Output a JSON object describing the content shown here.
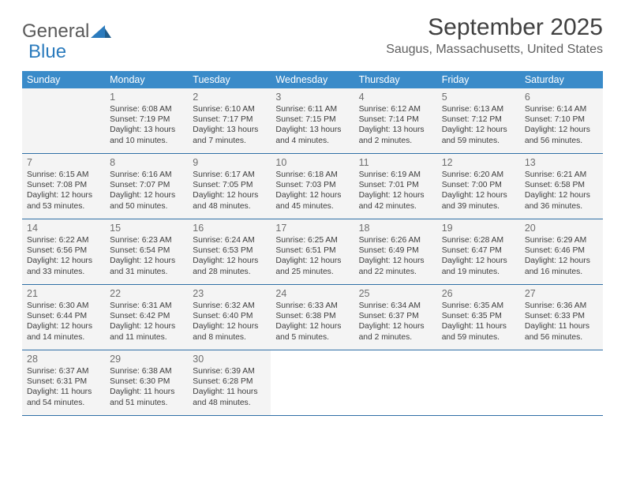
{
  "logo": {
    "word1": "General",
    "word2": "Blue"
  },
  "title": "September 2025",
  "location": "Saugus, Massachusetts, United States",
  "colors": {
    "header_bg": "#3a8bc9",
    "header_text": "#ffffff",
    "cell_bg": "#f4f4f4",
    "border": "#2f6fa6",
    "title_color": "#404040",
    "location_color": "#606060",
    "logo_gray": "#5a5a5a",
    "logo_blue": "#2b7bbd"
  },
  "day_names": [
    "Sunday",
    "Monday",
    "Tuesday",
    "Wednesday",
    "Thursday",
    "Friday",
    "Saturday"
  ],
  "weeks": [
    [
      {
        "blank": true
      },
      {
        "n": "1",
        "sr": "Sunrise: 6:08 AM",
        "ss": "Sunset: 7:19 PM",
        "d1": "Daylight: 13 hours",
        "d2": "and 10 minutes."
      },
      {
        "n": "2",
        "sr": "Sunrise: 6:10 AM",
        "ss": "Sunset: 7:17 PM",
        "d1": "Daylight: 13 hours",
        "d2": "and 7 minutes."
      },
      {
        "n": "3",
        "sr": "Sunrise: 6:11 AM",
        "ss": "Sunset: 7:15 PM",
        "d1": "Daylight: 13 hours",
        "d2": "and 4 minutes."
      },
      {
        "n": "4",
        "sr": "Sunrise: 6:12 AM",
        "ss": "Sunset: 7:14 PM",
        "d1": "Daylight: 13 hours",
        "d2": "and 2 minutes."
      },
      {
        "n": "5",
        "sr": "Sunrise: 6:13 AM",
        "ss": "Sunset: 7:12 PM",
        "d1": "Daylight: 12 hours",
        "d2": "and 59 minutes."
      },
      {
        "n": "6",
        "sr": "Sunrise: 6:14 AM",
        "ss": "Sunset: 7:10 PM",
        "d1": "Daylight: 12 hours",
        "d2": "and 56 minutes."
      }
    ],
    [
      {
        "n": "7",
        "sr": "Sunrise: 6:15 AM",
        "ss": "Sunset: 7:08 PM",
        "d1": "Daylight: 12 hours",
        "d2": "and 53 minutes."
      },
      {
        "n": "8",
        "sr": "Sunrise: 6:16 AM",
        "ss": "Sunset: 7:07 PM",
        "d1": "Daylight: 12 hours",
        "d2": "and 50 minutes."
      },
      {
        "n": "9",
        "sr": "Sunrise: 6:17 AM",
        "ss": "Sunset: 7:05 PM",
        "d1": "Daylight: 12 hours",
        "d2": "and 48 minutes."
      },
      {
        "n": "10",
        "sr": "Sunrise: 6:18 AM",
        "ss": "Sunset: 7:03 PM",
        "d1": "Daylight: 12 hours",
        "d2": "and 45 minutes."
      },
      {
        "n": "11",
        "sr": "Sunrise: 6:19 AM",
        "ss": "Sunset: 7:01 PM",
        "d1": "Daylight: 12 hours",
        "d2": "and 42 minutes."
      },
      {
        "n": "12",
        "sr": "Sunrise: 6:20 AM",
        "ss": "Sunset: 7:00 PM",
        "d1": "Daylight: 12 hours",
        "d2": "and 39 minutes."
      },
      {
        "n": "13",
        "sr": "Sunrise: 6:21 AM",
        "ss": "Sunset: 6:58 PM",
        "d1": "Daylight: 12 hours",
        "d2": "and 36 minutes."
      }
    ],
    [
      {
        "n": "14",
        "sr": "Sunrise: 6:22 AM",
        "ss": "Sunset: 6:56 PM",
        "d1": "Daylight: 12 hours",
        "d2": "and 33 minutes."
      },
      {
        "n": "15",
        "sr": "Sunrise: 6:23 AM",
        "ss": "Sunset: 6:54 PM",
        "d1": "Daylight: 12 hours",
        "d2": "and 31 minutes."
      },
      {
        "n": "16",
        "sr": "Sunrise: 6:24 AM",
        "ss": "Sunset: 6:53 PM",
        "d1": "Daylight: 12 hours",
        "d2": "and 28 minutes."
      },
      {
        "n": "17",
        "sr": "Sunrise: 6:25 AM",
        "ss": "Sunset: 6:51 PM",
        "d1": "Daylight: 12 hours",
        "d2": "and 25 minutes."
      },
      {
        "n": "18",
        "sr": "Sunrise: 6:26 AM",
        "ss": "Sunset: 6:49 PM",
        "d1": "Daylight: 12 hours",
        "d2": "and 22 minutes."
      },
      {
        "n": "19",
        "sr": "Sunrise: 6:28 AM",
        "ss": "Sunset: 6:47 PM",
        "d1": "Daylight: 12 hours",
        "d2": "and 19 minutes."
      },
      {
        "n": "20",
        "sr": "Sunrise: 6:29 AM",
        "ss": "Sunset: 6:46 PM",
        "d1": "Daylight: 12 hours",
        "d2": "and 16 minutes."
      }
    ],
    [
      {
        "n": "21",
        "sr": "Sunrise: 6:30 AM",
        "ss": "Sunset: 6:44 PM",
        "d1": "Daylight: 12 hours",
        "d2": "and 14 minutes."
      },
      {
        "n": "22",
        "sr": "Sunrise: 6:31 AM",
        "ss": "Sunset: 6:42 PM",
        "d1": "Daylight: 12 hours",
        "d2": "and 11 minutes."
      },
      {
        "n": "23",
        "sr": "Sunrise: 6:32 AM",
        "ss": "Sunset: 6:40 PM",
        "d1": "Daylight: 12 hours",
        "d2": "and 8 minutes."
      },
      {
        "n": "24",
        "sr": "Sunrise: 6:33 AM",
        "ss": "Sunset: 6:38 PM",
        "d1": "Daylight: 12 hours",
        "d2": "and 5 minutes."
      },
      {
        "n": "25",
        "sr": "Sunrise: 6:34 AM",
        "ss": "Sunset: 6:37 PM",
        "d1": "Daylight: 12 hours",
        "d2": "and 2 minutes."
      },
      {
        "n": "26",
        "sr": "Sunrise: 6:35 AM",
        "ss": "Sunset: 6:35 PM",
        "d1": "Daylight: 11 hours",
        "d2": "and 59 minutes."
      },
      {
        "n": "27",
        "sr": "Sunrise: 6:36 AM",
        "ss": "Sunset: 6:33 PM",
        "d1": "Daylight: 11 hours",
        "d2": "and 56 minutes."
      }
    ],
    [
      {
        "n": "28",
        "sr": "Sunrise: 6:37 AM",
        "ss": "Sunset: 6:31 PM",
        "d1": "Daylight: 11 hours",
        "d2": "and 54 minutes."
      },
      {
        "n": "29",
        "sr": "Sunrise: 6:38 AM",
        "ss": "Sunset: 6:30 PM",
        "d1": "Daylight: 11 hours",
        "d2": "and 51 minutes."
      },
      {
        "n": "30",
        "sr": "Sunrise: 6:39 AM",
        "ss": "Sunset: 6:28 PM",
        "d1": "Daylight: 11 hours",
        "d2": "and 48 minutes."
      },
      {
        "blank": true,
        "white": true
      },
      {
        "blank": true,
        "white": true
      },
      {
        "blank": true,
        "white": true
      },
      {
        "blank": true,
        "white": true
      }
    ]
  ]
}
